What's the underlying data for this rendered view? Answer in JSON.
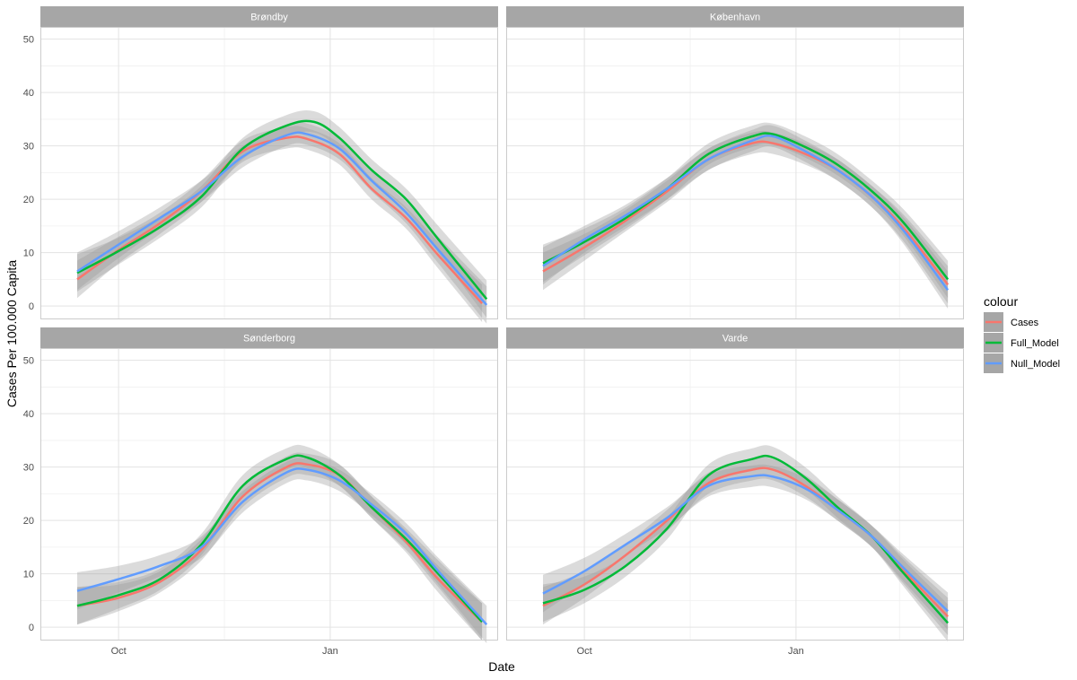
{
  "chart_data": {
    "type": "line",
    "xlabel": "Date",
    "ylabel": "Cases Per 100.000 Capita",
    "ylim": [
      0,
      50
    ],
    "yticks": [
      0,
      10,
      20,
      30,
      40,
      50
    ],
    "x_axis_type": "date",
    "xlim": [
      "2020-08-28",
      "2021-03-15"
    ],
    "xticks": [
      {
        "date": "2020-10-01",
        "label": "Oct"
      },
      {
        "date": "2021-01-01",
        "label": "Jan"
      }
    ],
    "grid": true,
    "smoothed_with_confidence_band": true,
    "legend": {
      "title": "colour",
      "position": "right",
      "entries": [
        {
          "name": "Cases",
          "color": "#F8766D"
        },
        {
          "name": "Full_Model",
          "color": "#00BA38"
        },
        {
          "name": "Null_Model",
          "color": "#619CFF"
        }
      ]
    },
    "panels": [
      {
        "title": "Brøndby",
        "series": [
          {
            "name": "Cases",
            "x": [
              "2020-09-13",
              "2020-10-01",
              "2020-10-19",
              "2020-11-06",
              "2020-11-24",
              "2020-12-13",
              "2020-12-22",
              "2021-01-05",
              "2021-01-19",
              "2021-02-03",
              "2021-02-17",
              "2021-03-08"
            ],
            "values": [
              5.0,
              10.5,
              15.5,
              21.5,
              29.0,
              31.5,
              31.3,
              28.5,
              22.0,
              16.5,
              9.5,
              0.5
            ]
          },
          {
            "name": "Full_Model",
            "x": [
              "2020-09-13",
              "2020-10-01",
              "2020-10-19",
              "2020-11-06",
              "2020-11-24",
              "2020-12-13",
              "2020-12-25",
              "2021-01-05",
              "2021-01-19",
              "2021-02-03",
              "2021-02-17",
              "2021-03-10"
            ],
            "values": [
              6.2,
              10.3,
              14.8,
              20.5,
              29.5,
              33.8,
              34.5,
              31.5,
              25.5,
              20.0,
              12.5,
              1.3
            ]
          },
          {
            "name": "Null_Model",
            "x": [
              "2020-09-13",
              "2020-10-01",
              "2020-10-19",
              "2020-11-06",
              "2020-11-24",
              "2020-12-13",
              "2020-12-22",
              "2021-01-05",
              "2021-01-19",
              "2021-02-03",
              "2021-02-17",
              "2021-03-10"
            ],
            "values": [
              6.5,
              11.5,
              16.5,
              21.5,
              28.0,
              32.0,
              32.2,
              29.5,
              23.5,
              17.5,
              10.5,
              0.2
            ]
          }
        ]
      },
      {
        "title": "København",
        "series": [
          {
            "name": "Cases",
            "x": [
              "2020-09-13",
              "2020-10-01",
              "2020-10-19",
              "2020-11-06",
              "2020-11-24",
              "2020-12-13",
              "2020-12-22",
              "2021-01-05",
              "2021-01-19",
              "2021-02-03",
              "2021-02-17",
              "2021-03-08"
            ],
            "values": [
              6.5,
              11.0,
              16.0,
              21.5,
              27.5,
              30.5,
              30.5,
              28.5,
              25.5,
              20.5,
              14.5,
              4.0
            ]
          },
          {
            "name": "Full_Model",
            "x": [
              "2020-09-13",
              "2020-10-01",
              "2020-10-19",
              "2020-11-06",
              "2020-11-24",
              "2020-12-13",
              "2020-12-22",
              "2021-01-05",
              "2021-01-19",
              "2021-02-03",
              "2021-02-17",
              "2021-03-08"
            ],
            "values": [
              8.0,
              12.0,
              16.5,
              22.0,
              28.5,
              31.8,
              32.2,
              29.8,
              26.5,
              21.5,
              15.5,
              5.0
            ]
          },
          {
            "name": "Null_Model",
            "x": [
              "2020-09-13",
              "2020-10-01",
              "2020-10-19",
              "2020-11-06",
              "2020-11-24",
              "2020-12-13",
              "2020-12-22",
              "2021-01-05",
              "2021-01-19",
              "2021-02-03",
              "2021-02-17",
              "2021-03-08"
            ],
            "values": [
              7.5,
              12.5,
              17.0,
              22.0,
              27.5,
              31.0,
              31.8,
              29.0,
              25.5,
              20.5,
              14.0,
              3.0
            ]
          }
        ]
      },
      {
        "title": "Sønderborg",
        "series": [
          {
            "name": "Cases",
            "x": [
              "2020-09-13",
              "2020-10-01",
              "2020-10-19",
              "2020-11-06",
              "2020-11-24",
              "2020-12-13",
              "2020-12-22",
              "2021-01-05",
              "2021-01-19",
              "2021-02-03",
              "2021-02-17",
              "2021-03-08"
            ],
            "values": [
              4.0,
              5.5,
              8.5,
              14.5,
              24.5,
              30.0,
              30.5,
              28.5,
              22.5,
              16.0,
              9.0,
              1.0
            ]
          },
          {
            "name": "Full_Model",
            "x": [
              "2020-09-13",
              "2020-10-01",
              "2020-10-19",
              "2020-11-06",
              "2020-11-24",
              "2020-12-13",
              "2020-12-22",
              "2021-01-05",
              "2021-01-19",
              "2021-02-03",
              "2021-02-17",
              "2021-03-08"
            ],
            "values": [
              4.0,
              6.0,
              9.0,
              15.5,
              26.5,
              31.5,
              31.8,
              28.5,
              22.5,
              16.5,
              10.0,
              1.0
            ]
          },
          {
            "name": "Null_Model",
            "x": [
              "2020-09-13",
              "2020-10-01",
              "2020-10-19",
              "2020-11-06",
              "2020-11-24",
              "2020-12-13",
              "2020-12-22",
              "2021-01-05",
              "2021-01-19",
              "2021-02-03",
              "2021-02-17",
              "2021-03-10"
            ],
            "values": [
              6.8,
              9.0,
              11.5,
              15.0,
              23.5,
              29.0,
              29.5,
              27.5,
              23.0,
              17.5,
              10.5,
              0.5
            ]
          }
        ]
      },
      {
        "title": "Varde",
        "series": [
          {
            "name": "Cases",
            "x": [
              "2020-09-13",
              "2020-10-01",
              "2020-10-19",
              "2020-11-06",
              "2020-11-24",
              "2020-12-13",
              "2020-12-22",
              "2021-01-05",
              "2021-01-19",
              "2021-02-03",
              "2021-02-17",
              "2021-03-08"
            ],
            "values": [
              4.0,
              8.0,
              13.5,
              20.0,
              27.0,
              29.5,
              29.5,
              26.5,
              22.0,
              17.0,
              10.5,
              2.0
            ]
          },
          {
            "name": "Full_Model",
            "x": [
              "2020-09-13",
              "2020-10-01",
              "2020-10-19",
              "2020-11-06",
              "2020-11-24",
              "2020-12-13",
              "2020-12-22",
              "2021-01-05",
              "2021-01-19",
              "2021-02-03",
              "2021-02-17",
              "2021-03-08"
            ],
            "values": [
              4.5,
              7.0,
              11.5,
              18.5,
              28.5,
              31.5,
              31.8,
              28.0,
              22.5,
              17.0,
              10.0,
              0.8
            ]
          },
          {
            "name": "Null_Model",
            "x": [
              "2020-09-13",
              "2020-10-01",
              "2020-10-19",
              "2020-11-06",
              "2020-11-24",
              "2020-12-13",
              "2020-12-22",
              "2021-01-05",
              "2021-01-19",
              "2021-02-03",
              "2021-02-17",
              "2021-03-08"
            ],
            "values": [
              6.3,
              10.5,
              15.5,
              20.5,
              26.5,
              28.3,
              28.2,
              26.0,
              22.0,
              17.0,
              11.0,
              3.0
            ]
          }
        ]
      }
    ]
  }
}
